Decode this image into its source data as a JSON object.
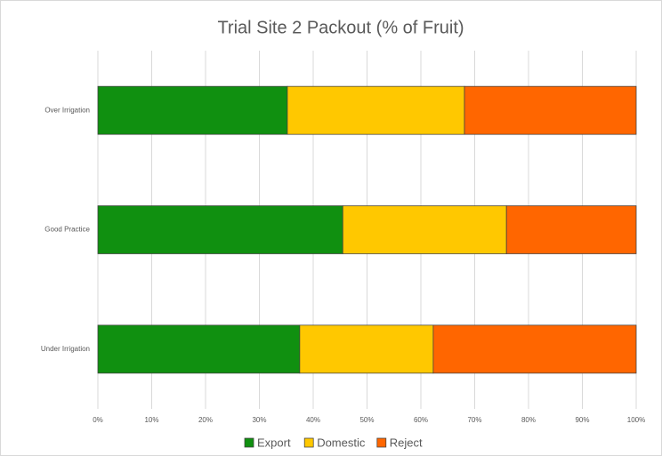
{
  "chart_data": {
    "type": "stacked-bar-horizontal",
    "title": "Trial Site 2 Packout (% of Fruit)",
    "categories": [
      "Over Irrigation",
      "Good Practice",
      "Under Irrigation"
    ],
    "series": [
      {
        "name": "Export",
        "color": "#109010",
        "values": [
          35.2,
          45.5,
          37.5
        ]
      },
      {
        "name": "Domestic",
        "color": "#ffc800",
        "values": [
          32.9,
          30.4,
          24.8
        ]
      },
      {
        "name": "Reject",
        "color": "#ff6600",
        "values": [
          31.9,
          24.1,
          37.7
        ]
      }
    ],
    "xlim": [
      0,
      100
    ],
    "xticks": [
      {
        "value": 0,
        "label": "0%"
      },
      {
        "value": 10,
        "label": "10%"
      },
      {
        "value": 20,
        "label": "20%"
      },
      {
        "value": 30,
        "label": "30%"
      },
      {
        "value": 40,
        "label": "40%"
      },
      {
        "value": 50,
        "label": "50%"
      },
      {
        "value": 60,
        "label": "60%"
      },
      {
        "value": 70,
        "label": "70%"
      },
      {
        "value": 80,
        "label": "80%"
      },
      {
        "value": 90,
        "label": "90%"
      },
      {
        "value": 100,
        "label": "100%"
      }
    ],
    "grid": true,
    "legend": "bottom"
  }
}
